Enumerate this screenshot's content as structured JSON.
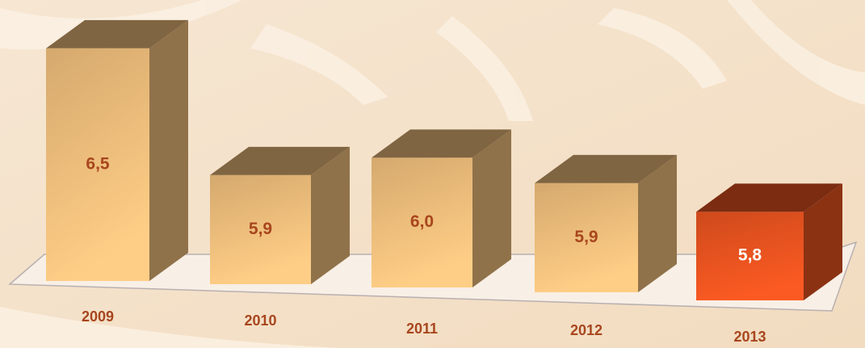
{
  "chart_data": {
    "type": "bar3d",
    "categories": [
      "2009",
      "2010",
      "2011",
      "2012",
      "2013"
    ],
    "values": [
      6.5,
      5.9,
      6.0,
      5.9,
      5.8
    ],
    "value_labels": [
      "6,5",
      "5,9",
      "6,0",
      "5,9",
      "5,8"
    ],
    "colors": [
      "#e8b878",
      "#e8b878",
      "#e8b878",
      "#e8b878",
      "#e0501e"
    ],
    "label_color": "#a8461e"
  }
}
